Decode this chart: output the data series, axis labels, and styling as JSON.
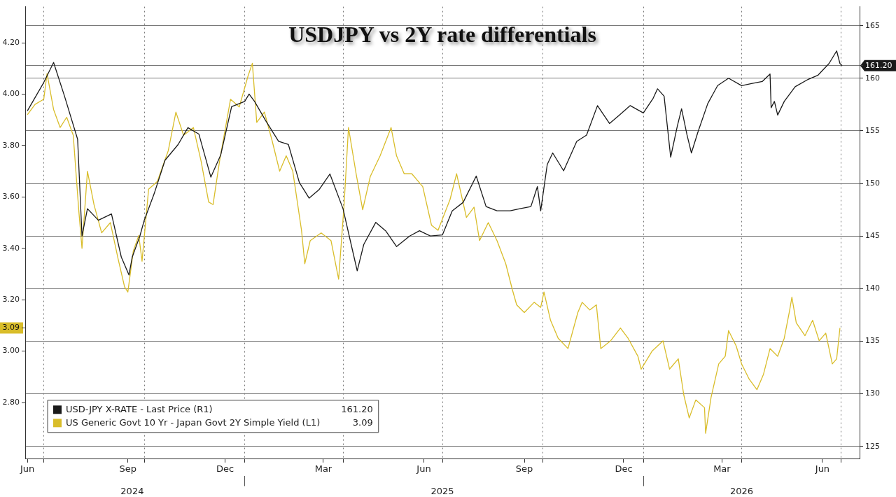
{
  "chart_data": {
    "type": "line",
    "title": "USDJPY vs 2Y rate differentials",
    "xlim": [
      "2024-06-14",
      "2026-07-18"
    ],
    "xticks": [
      {
        "value": "2024-06-16",
        "label": "Jun"
      },
      {
        "value": "2024-07-01",
        "label": null
      },
      {
        "value": "2024-09-16",
        "label": "Sep"
      },
      {
        "value": "2024-10-01",
        "label": null
      },
      {
        "value": "2024-12-14",
        "label": "Dec"
      },
      {
        "value": "2025-01-01",
        "label": null
      },
      {
        "value": "2025-03-14",
        "label": "Mar"
      },
      {
        "value": "2025-04-01",
        "label": null
      },
      {
        "value": "2025-06-14",
        "label": "Jun"
      },
      {
        "value": "2025-07-01",
        "label": null
      },
      {
        "value": "2025-09-14",
        "label": "Sep"
      },
      {
        "value": "2025-10-01",
        "label": null
      },
      {
        "value": "2025-12-14",
        "label": "Dec"
      },
      {
        "value": "2026-01-01",
        "label": null
      },
      {
        "value": "2026-03-14",
        "label": "Mar"
      },
      {
        "value": "2026-04-01",
        "label": null
      },
      {
        "value": "2026-06-14",
        "label": "Jun"
      },
      {
        "value": "2026-07-01",
        "label": null
      }
    ],
    "x2lim": [
      "2024-06-14",
      "2026-07-18"
    ],
    "x2ticks": [
      {
        "value": "2024-09-20",
        "label": "2024"
      },
      {
        "value": "2025-01-01",
        "label": null
      },
      {
        "value": "2025-07-01",
        "label": "2025"
      },
      {
        "value": "2026-01-01",
        "label": null
      },
      {
        "value": "2026-04-01",
        "label": "2026"
      }
    ],
    "ylim": [
      2.58,
      4.34
    ],
    "yticks": [
      {
        "value": 2.8,
        "label": "2.80"
      },
      {
        "value": 3,
        "label": "3.00"
      },
      {
        "value": 3.09,
        "label": "3.09"
      },
      {
        "value": 3.2,
        "label": "3.20"
      },
      {
        "value": 3.4,
        "label": "3.40"
      },
      {
        "value": 3.6,
        "label": "3.60"
      },
      {
        "value": 3.8,
        "label": "3.80"
      },
      {
        "value": 4,
        "label": "4.00"
      },
      {
        "value": 4.2,
        "label": "4.20"
      }
    ],
    "y2lim": [
      123.8,
      166.8
    ],
    "y2ticks": [
      125,
      130,
      135,
      140,
      145,
      150,
      155,
      160,
      {
        "value": 161.2,
        "label": "161.20"
      },
      165
    ],
    "annotations": [
      "161.20",
      "3.09"
    ],
    "grid": true,
    "legend": "bottom left",
    "marker": "none",
    "series": [
      {
        "name": "USD-JPY X-RATE - Last Price (R1)",
        "color": "#1a1a1a",
        "axis": "y2",
        "x": [
          "2024-06-16",
          "2024-07-01",
          "2024-07-10",
          "2024-07-20",
          "2024-08-01",
          "2024-08-05",
          "2024-08-10",
          "2024-08-20",
          "2024-09-01",
          "2024-09-10",
          "2024-09-17",
          "2024-09-20",
          "2024-09-27",
          "2024-10-01",
          "2024-10-10",
          "2024-10-20",
          "2024-11-01",
          "2024-11-10",
          "2024-11-20",
          "2024-12-01",
          "2024-12-10",
          "2024-12-20",
          "2025-01-01",
          "2025-01-05",
          "2025-01-10",
          "2025-01-20",
          "2025-02-01",
          "2025-02-10",
          "2025-02-20",
          "2025-03-01",
          "2025-03-10",
          "2025-03-20",
          "2025-04-01",
          "2025-04-10",
          "2025-04-14",
          "2025-04-20",
          "2025-05-01",
          "2025-05-10",
          "2025-05-20",
          "2025-06-01",
          "2025-06-10",
          "2025-06-20",
          "2025-07-01",
          "2025-07-10",
          "2025-07-20",
          "2025-08-01",
          "2025-08-10",
          "2025-08-20",
          "2025-09-01",
          "2025-09-10",
          "2025-09-20",
          "2025-09-26",
          "2025-09-29",
          "2025-10-05",
          "2025-10-10",
          "2025-10-20",
          "2025-11-01",
          "2025-11-10",
          "2025-11-20",
          "2025-12-01",
          "2025-12-10",
          "2025-12-20",
          "2026-01-01",
          "2026-01-10",
          "2026-01-14",
          "2026-01-20",
          "2026-01-26",
          "2026-02-01",
          "2026-02-05",
          "2026-02-10",
          "2026-02-14",
          "2026-02-20",
          "2026-03-01",
          "2026-03-10",
          "2026-03-20",
          "2026-04-01",
          "2026-04-10",
          "2026-04-20",
          "2026-04-27",
          "2026-04-28",
          "2026-05-01",
          "2026-05-04",
          "2026-05-10",
          "2026-05-20",
          "2026-06-01",
          "2026-06-10",
          "2026-06-20",
          "2026-06-27",
          "2026-06-30",
          "2026-07-02"
        ],
        "values": [
          156.9,
          159.6,
          161.5,
          158.3,
          154.2,
          145.0,
          147.6,
          146.5,
          147.1,
          143.0,
          141.3,
          143.0,
          145.0,
          146.5,
          149.0,
          152.2,
          153.7,
          155.3,
          154.7,
          150.6,
          152.7,
          157.3,
          157.8,
          158.5,
          157.8,
          156.0,
          154.0,
          153.7,
          150.1,
          148.6,
          149.4,
          150.9,
          147.6,
          143.5,
          141.7,
          144.2,
          146.3,
          145.5,
          144.0,
          145.0,
          145.5,
          145.0,
          145.1,
          147.4,
          148.2,
          150.7,
          147.8,
          147.4,
          147.4,
          147.6,
          147.8,
          149.7,
          147.4,
          151.8,
          152.9,
          151.2,
          154.0,
          154.6,
          157.4,
          155.7,
          156.5,
          157.4,
          156.7,
          158.1,
          159.0,
          158.3,
          152.5,
          155.4,
          157.1,
          154.6,
          152.9,
          154.9,
          157.6,
          159.3,
          160.0,
          159.3,
          159.5,
          159.7,
          160.4,
          157.2,
          157.8,
          156.5,
          157.8,
          159.2,
          159.9,
          160.3,
          161.4,
          162.6,
          161.4,
          161.2
        ]
      },
      {
        "name": "US Generic Govt 10 Yr - Japan Govt 2Y Simple Yield (L1)",
        "color": "#d9bd2a",
        "axis": "y",
        "x": [
          "2024-06-16",
          "2024-06-23",
          "2024-07-01",
          "2024-07-04",
          "2024-07-10",
          "2024-07-16",
          "2024-07-22",
          "2024-07-28",
          "2024-08-02",
          "2024-08-05",
          "2024-08-10",
          "2024-08-16",
          "2024-08-23",
          "2024-08-31",
          "2024-09-07",
          "2024-09-13",
          "2024-09-16",
          "2024-09-21",
          "2024-09-26",
          "2024-09-29",
          "2024-10-05",
          "2024-10-13",
          "2024-10-23",
          "2024-10-30",
          "2024-11-06",
          "2024-11-15",
          "2024-11-22",
          "2024-11-29",
          "2024-12-03",
          "2024-12-09",
          "2024-12-19",
          "2024-12-27",
          "2025-01-04",
          "2025-01-08",
          "2025-01-12",
          "2025-01-19",
          "2025-01-26",
          "2025-02-02",
          "2025-02-08",
          "2025-02-14",
          "2025-02-22",
          "2025-02-25",
          "2025-03-02",
          "2025-03-12",
          "2025-03-21",
          "2025-03-28",
          "2025-04-02",
          "2025-04-06",
          "2025-04-13",
          "2025-04-19",
          "2025-04-26",
          "2025-05-05",
          "2025-05-15",
          "2025-05-20",
          "2025-05-27",
          "2025-06-03",
          "2025-06-13",
          "2025-06-21",
          "2025-06-27",
          "2025-07-08",
          "2025-07-14",
          "2025-07-23",
          "2025-07-30",
          "2025-08-04",
          "2025-08-12",
          "2025-08-20",
          "2025-08-28",
          "2025-09-03",
          "2025-09-07",
          "2025-09-14",
          "2025-09-23",
          "2025-09-29",
          "2025-10-02",
          "2025-10-08",
          "2025-10-15",
          "2025-10-24",
          "2025-11-02",
          "2025-11-06",
          "2025-11-13",
          "2025-11-19",
          "2025-11-23",
          "2025-12-02",
          "2025-12-11",
          "2025-12-18",
          "2025-12-27",
          "2025-12-30",
          "2026-01-09",
          "2026-01-19",
          "2026-01-25",
          "2026-02-02",
          "2026-02-07",
          "2026-02-12",
          "2026-02-18",
          "2026-02-26",
          "2026-02-27",
          "2026-03-04",
          "2026-03-11",
          "2026-03-17",
          "2026-03-20",
          "2026-03-27",
          "2026-04-01",
          "2026-04-08",
          "2026-04-15",
          "2026-04-21",
          "2026-04-27",
          "2026-05-04",
          "2026-05-10",
          "2026-05-15",
          "2026-05-17",
          "2026-05-21",
          "2026-05-29",
          "2026-06-05",
          "2026-06-11",
          "2026-06-17",
          "2026-06-23",
          "2026-06-27",
          "2026-06-30"
        ],
        "values": [
          3.92,
          3.96,
          3.98,
          4.08,
          3.94,
          3.87,
          3.91,
          3.84,
          3.55,
          3.4,
          3.7,
          3.57,
          3.46,
          3.5,
          3.36,
          3.25,
          3.23,
          3.39,
          3.45,
          3.35,
          3.63,
          3.66,
          3.78,
          3.93,
          3.84,
          3.87,
          3.74,
          3.58,
          3.57,
          3.74,
          3.98,
          3.95,
          4.07,
          4.12,
          3.89,
          3.93,
          3.82,
          3.7,
          3.76,
          3.7,
          3.47,
          3.34,
          3.43,
          3.46,
          3.43,
          3.28,
          3.57,
          3.87,
          3.69,
          3.55,
          3.68,
          3.76,
          3.87,
          3.76,
          3.69,
          3.69,
          3.64,
          3.49,
          3.47,
          3.59,
          3.69,
          3.52,
          3.56,
          3.43,
          3.5,
          3.43,
          3.34,
          3.24,
          3.18,
          3.15,
          3.19,
          3.17,
          3.23,
          3.12,
          3.05,
          3.01,
          3.15,
          3.19,
          3.16,
          3.18,
          3.01,
          3.04,
          3.09,
          3.05,
          2.98,
          2.93,
          3.0,
          3.04,
          2.93,
          2.97,
          2.83,
          2.74,
          2.81,
          2.78,
          2.68,
          2.82,
          2.95,
          2.98,
          3.08,
          3.02,
          2.95,
          2.89,
          2.85,
          2.91,
          3.01,
          2.98,
          3.05,
          3.16,
          3.21,
          3.11,
          3.06,
          3.12,
          3.04,
          3.07,
          2.95,
          2.97,
          3.09
        ]
      }
    ]
  }
}
